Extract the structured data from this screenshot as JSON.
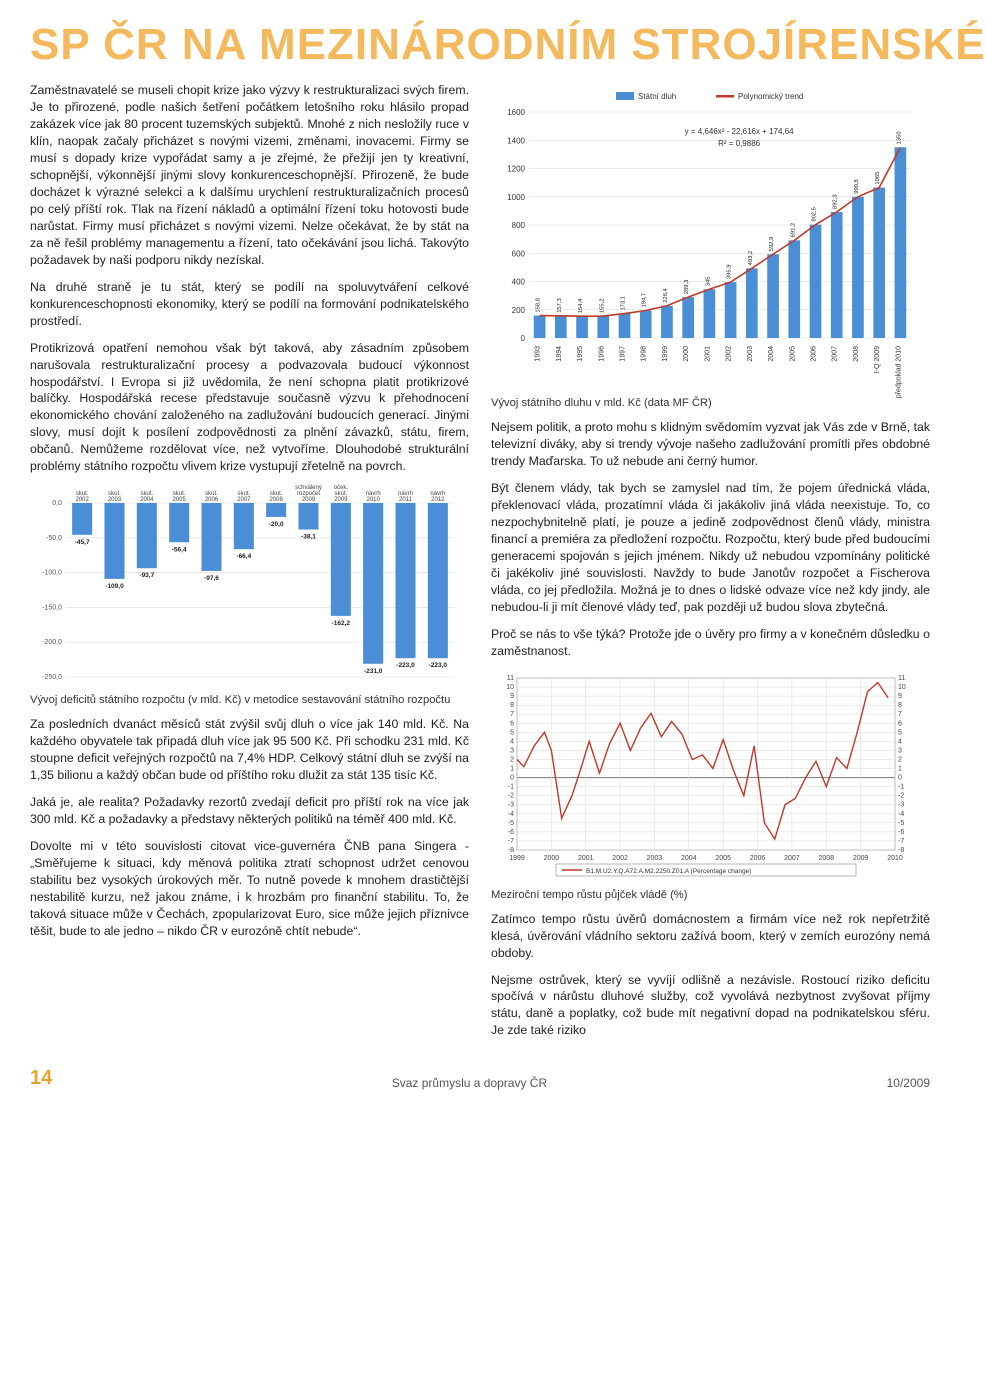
{
  "banner": "SP ČR NA MEZINÁRODNÍM STROJÍRENSKÉ",
  "left": {
    "p1": "Zaměstnavatelé se museli chopit krize jako výzvy k restrukturalizaci svých firem. Je to přirozené, podle našich šetření počátkem letošního roku hlásilo propad zakázek více jak 80 procent tuzemských subjektů. Mnohé z nich nesložily ruce v klín, naopak začaly přicházet s novými vizemi, změnami, inovacemi. Firmy se musí s dopady krize vypořádat samy a je zřejmé, že přežijí jen ty kreativní, schopnější, výkonnější jinými slovy konkurenceschopnější. Přirozeně, že bude docházet k výrazné selekci a k dalšímu urychlení restrukturalizačních procesů po celý příští rok. Tlak na řízení nákladů a optimální řízení toku hotovosti bude narůstat. Firmy musí přicházet s novými vizemi. Nelze očekávat, že by stát na za ně řešil problémy managementu a řízení, tato očekávání jsou lichá. Takovýto požadavek by naši podporu nikdy nezískal.",
    "p2": "Na druhé straně je tu stát, který se podílí na spoluvytváření celkové konkurenceschopnosti ekonomiky, který se podílí na formování podnikatelského prostředí.",
    "p3": "Protikrizová opatření nemohou však být taková, aby zásadním způsobem narušovala restrukturalizační procesy a podvazovala budoucí výkonnost hospodářství. I Evropa si již uvědomila, že není schopna platit protikrizové balíčky. Hospodářská recese představuje současně výzvu k přehodnocení ekonomického chování založeného na zadlužování budoucích generací. Jinými slovy, musí dojít k posílení zodpovědnosti za plnění závazků, státu, firem, občanů. Nemůžeme rozdělovat více, než vytvoříme. Dlouhodobé strukturální problémy státního rozpočtu vlivem krize vystupují zřetelně na povrch.",
    "chart1_caption": "Vývoj deficitů státního rozpočtu (v mld. Kč) v metodice sestavování státního rozpočtu",
    "p4": "Za posledních dvanáct měsíců stát zvýšil svůj dluh o více jak 140 mld. Kč. Na každého obyvatele tak připadá dluh více jak 95 500 Kč. Při schodku 231 mld. Kč stoupne deficit veřejných rozpočtů na 7,4% HDP. Celkový státní dluh se zvýší na 1,35 bilionu a každý občan bude od příštího roku dlužit za stát 135 tisíc Kč.",
    "p5": "Jaká je, ale realita? Požadavky rezortů zvedají deficit pro příští rok na více jak 300 mld. Kč a požadavky a představy některých politiků na téměř 400 mld. Kč.",
    "p6": "Dovolte mi v této souvislosti citovat vice-guvernéra ČNB pana Singera - „Směřujeme k situaci, kdy měnová politika ztratí schopnost udržet cenovou stabilitu bez vysokých úrokových měr. To nutně povede k mnohem drastičtější nestabilitě kurzu, než jakou známe, i k hrozbám pro finanční stabilitu. To, že taková situace může v Čechách, zpopularizovat Euro, sice může jejich příznivce těšit, bude to ale jedno – nikdo ČR v eurozóně chtít nebude“."
  },
  "right": {
    "chart2_caption": "Vývoj státního dluhu v mld. Kč (data MF ČR)",
    "p1": "Nejsem politik, a proto mohu s klidným svědomím vyzvat jak Vás zde v Brně, tak televizní diváky, aby si trendy vývoje našeho zadlužování promítli přes obdobné trendy Maďarska. To už nebude ani černý humor.",
    "p2": "Být členem vlády, tak bych se zamyslel nad tím, že pojem úřednická vláda, překlenovací vláda, prozatímní vláda či jakákoliv jiná vláda neexistuje. To, co nezpochybnitelně platí, je pouze a jedině zodpovědnost členů vlády, ministra financí a premiéra za předložení rozpočtu. Rozpočtu, který bude před budoucími generacemi spojován s jejich jménem. Nikdy už nebudou vzpomínány politické či jakékoliv jiné souvislosti. Navždy to bude Janotův rozpočet a Fischerova vláda, co jej předložila. Možná je to dnes o lidské odvaze více než kdy jindy, ale nebudou‑li ji mít členové vlády teď, pak později už budou slova zbytečná.",
    "p3": "Proč se nás to vše týká? Protože jde o úvěry pro firmy a v konečném důsledku o zaměstnanost.",
    "chart3_caption": "Meziroční tempo růstu půjček vládě (%)",
    "p4": "Zatímco tempo růstu úvěrů domácnostem a firmám více než rok nepřetržitě klesá, úvěrování vládního sektoru zažívá boom, který v zemích eurozóny nemá obdoby.",
    "p5": "Nejsme ostrůvek, který se vyvíjí odlišně a nezávisle. Rostoucí riziko deficitu spočívá v nárůstu dluhové služby, což vyvolává nezbytnost zvyšovat příjmy státu, daně a poplatky, což bude mít negativní dopad na podnikatelskou sféru. Je zde také riziko"
  },
  "chart1": {
    "type": "bar",
    "categories": [
      "skut. 2002",
      "skut. 2003",
      "skut. 2004",
      "skut. 2005",
      "skut. 2006",
      "skut. 2007",
      "skut. 2008",
      "schválený rozpočet 2009",
      "oček. skut. 2009",
      "návrh 2010",
      "návrh 2011",
      "návrh 2012"
    ],
    "values": [
      -45.7,
      -109.0,
      -93.7,
      -56.4,
      -97.6,
      -66.4,
      -20.0,
      -38.1,
      -162.2,
      -231.0,
      -223.0,
      -223.0
    ],
    "bar_color": "#4a8fd6",
    "bg": "#ffffff",
    "grid_color": "#dcdcdc",
    "ylim": [
      -250,
      0
    ],
    "ytick_step": 50,
    "label_fontsize": 6,
    "value_fontsize": 6.5,
    "axis_fontsize": 7
  },
  "chart2": {
    "type": "bar+line",
    "legend": {
      "bar": "Státní dluh",
      "line": "Polynomický trend"
    },
    "formula": "y = 4,646x² - 22,616x + 174,64",
    "r2": "R² = 0,9886",
    "years": [
      "1993",
      "1994",
      "1995",
      "1996",
      "1997",
      "1998",
      "1999",
      "2000",
      "2001",
      "2002",
      "2003",
      "2004",
      "2005",
      "2006",
      "2007",
      "2008",
      "I-Q 2009",
      "předpoklad 2010"
    ],
    "values": [
      158.8,
      157.3,
      154.4,
      155.2,
      173.1,
      194.7,
      228.4,
      289.3,
      345.0,
      395.9,
      493.2,
      592.9,
      691.2,
      802.5,
      892.3,
      999.8,
      1065,
      1350.0
    ],
    "bar_color": "#4a8fd6",
    "line_color": "#c0392b",
    "bg": "#ffffff",
    "grid_color": "#d8d8d8",
    "ylim": [
      0,
      1600
    ],
    "ytick_step": 200,
    "label_fontsize": 6,
    "value_fontsize": 5.8,
    "axis_fontsize": 8
  },
  "chart3": {
    "type": "line",
    "series_label": "B1.M.U2.Y.Q.A72.A.M2.2250.Z01.A (Percentage change)",
    "series_color": "#c0392b",
    "bg": "#ffffff",
    "grid_color": "#d8d8d8",
    "xlabels": [
      "1999",
      "2000",
      "2001",
      "2002",
      "2003",
      "2004",
      "2005",
      "2006",
      "2007",
      "2008",
      "2009",
      "2010"
    ],
    "ylim": [
      -8,
      11
    ],
    "ytick_step": 1,
    "points": [
      [
        1999.0,
        2.0
      ],
      [
        1999.2,
        1.2
      ],
      [
        1999.5,
        3.5
      ],
      [
        1999.8,
        5.0
      ],
      [
        2000.0,
        3.0
      ],
      [
        2000.3,
        -4.5
      ],
      [
        2000.6,
        -2.0
      ],
      [
        2000.9,
        1.5
      ],
      [
        2001.1,
        4.0
      ],
      [
        2001.4,
        0.5
      ],
      [
        2001.7,
        3.8
      ],
      [
        2002.0,
        6.0
      ],
      [
        2002.3,
        3.0
      ],
      [
        2002.6,
        5.5
      ],
      [
        2002.9,
        7.1
      ],
      [
        2003.2,
        4.5
      ],
      [
        2003.5,
        6.2
      ],
      [
        2003.8,
        4.8
      ],
      [
        2004.1,
        2.0
      ],
      [
        2004.4,
        2.5
      ],
      [
        2004.7,
        1.0
      ],
      [
        2005.0,
        4.2
      ],
      [
        2005.3,
        0.8
      ],
      [
        2005.6,
        -2.0
      ],
      [
        2005.9,
        3.5
      ],
      [
        2006.2,
        -5.0
      ],
      [
        2006.5,
        -6.8
      ],
      [
        2006.8,
        -3.0
      ],
      [
        2007.1,
        -2.3
      ],
      [
        2007.4,
        0.0
      ],
      [
        2007.7,
        1.8
      ],
      [
        2008.0,
        -1.0
      ],
      [
        2008.3,
        2.2
      ],
      [
        2008.6,
        1.0
      ],
      [
        2008.9,
        5.0
      ],
      [
        2009.2,
        9.5
      ],
      [
        2009.5,
        10.5
      ],
      [
        2009.8,
        8.8
      ]
    ],
    "axis_fontsize": 7,
    "legend_fontsize": 6.5
  },
  "footer": {
    "page": "14",
    "publisher": "Svaz průmyslu a dopravy ČR",
    "issue": "10/2009"
  }
}
